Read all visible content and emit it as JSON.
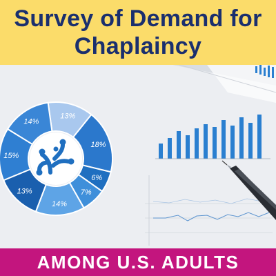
{
  "header": {
    "title": "Survey of Demand for Chaplaincy"
  },
  "footer": {
    "subtitle": "AMONG U.S. ADULTS"
  },
  "colors": {
    "header_bg": "#fbdc6a",
    "title_text": "#1a2f6e",
    "footer_bg": "#c3157e",
    "footer_text": "#ffffff",
    "accent_blue": "#1f6fc0"
  },
  "chart_data": [
    {
      "type": "pie",
      "labels": [
        "13%",
        "18%",
        "6%",
        "7%",
        "14%",
        "13%",
        "15%",
        "14%"
      ],
      "values": [
        13,
        18,
        6,
        7,
        14,
        13,
        15,
        14
      ]
    }
  ],
  "icons": {
    "logo": "coral-branch-logo",
    "pen": "pen-icon"
  }
}
